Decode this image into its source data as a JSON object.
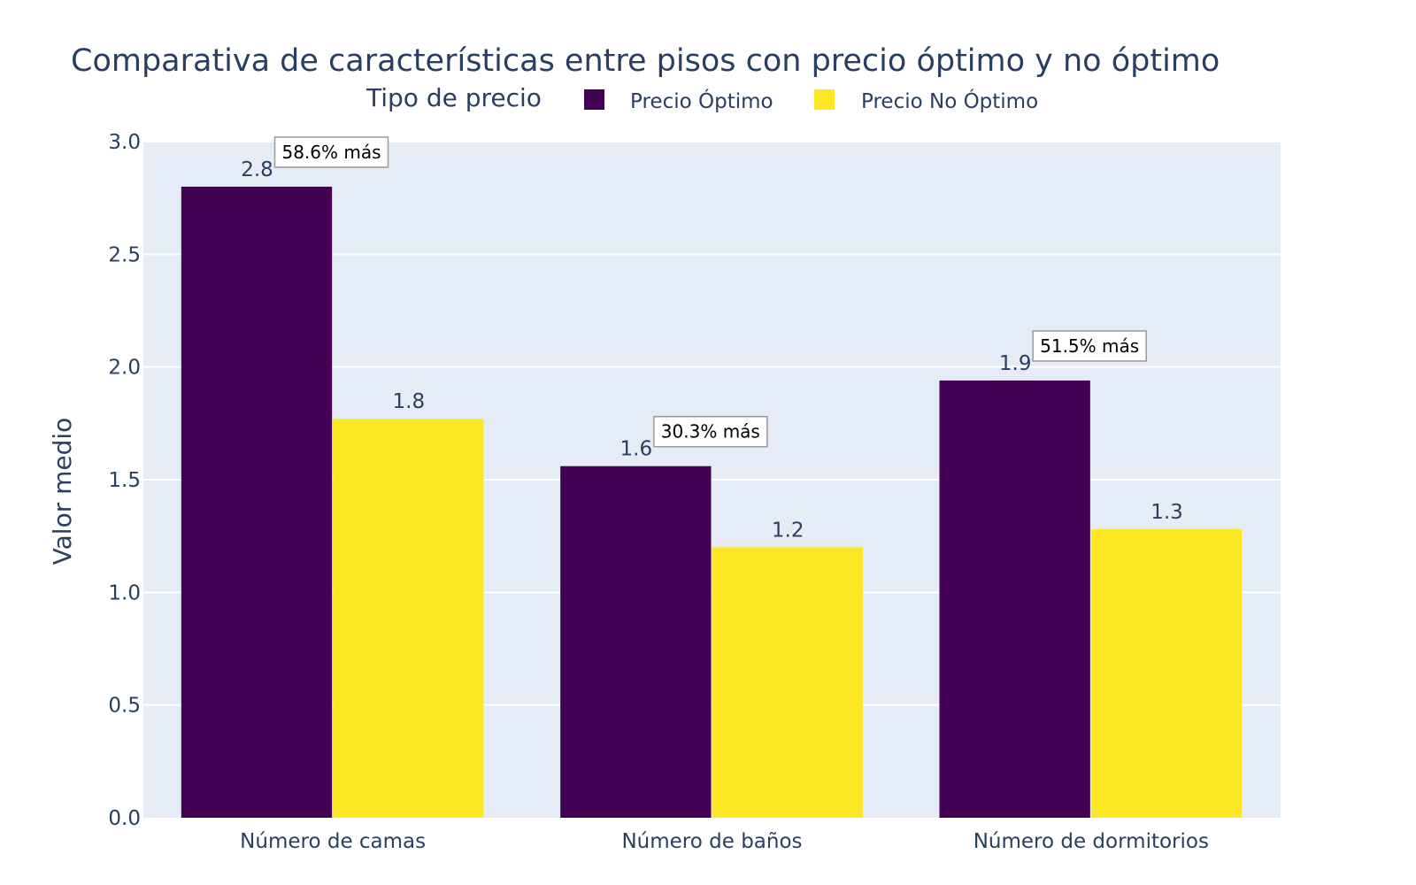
{
  "chart_data": {
    "type": "bar",
    "title": "Comparativa de características entre pisos con precio óptimo y no óptimo",
    "legend_title": "Tipo de precio",
    "legend_position": "top-center",
    "ylabel": "Valor medio",
    "xlabel": "",
    "ylim": [
      0,
      3
    ],
    "yticks": [
      "0.0",
      "0.5",
      "1.0",
      "1.5",
      "2.0",
      "2.5",
      "3.0"
    ],
    "grid": true,
    "categories": [
      "Número de camas",
      "Número de baños",
      "Número de dormitorios"
    ],
    "series": [
      {
        "name": "Precio Óptimo",
        "color": "#440154",
        "values": [
          2.8,
          1.56,
          1.94
        ],
        "labels": [
          "2.8",
          "1.6",
          "1.9"
        ]
      },
      {
        "name": "Precio No Óptimo",
        "color": "#fde725",
        "values": [
          1.77,
          1.2,
          1.28
        ],
        "labels": [
          "1.8",
          "1.2",
          "1.3"
        ]
      }
    ],
    "annotations": [
      "58.6% más",
      "30.3% más",
      "51.5% más"
    ],
    "plot_bgcolor": "#e5ecf6",
    "gridcolor": "#ffffff"
  }
}
